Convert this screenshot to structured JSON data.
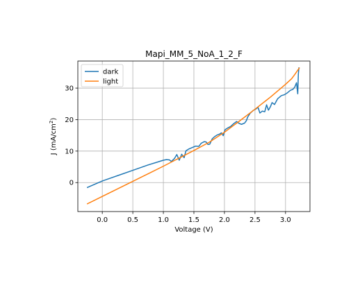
{
  "chart_data": {
    "type": "line",
    "title": "Mapi_MM_5_NoA_1_2_F",
    "xlabel": "Voltage (V)",
    "ylabel": "J (mA/cm²)",
    "ylabel_main": "J (mA/cm",
    "ylabel_sup": "2",
    "ylabel_end": ")",
    "xlim": [
      -0.4,
      3.4
    ],
    "ylim": [
      -9.2,
      38.6
    ],
    "xticks": [
      0.0,
      0.5,
      1.0,
      1.5,
      2.0,
      2.5,
      3.0
    ],
    "xtick_labels": [
      "0.0",
      "0.5",
      "1.0",
      "1.5",
      "2.0",
      "2.5",
      "3.0"
    ],
    "yticks": [
      0,
      10,
      20,
      30
    ],
    "ytick_labels": [
      "0",
      "10",
      "20",
      "30"
    ],
    "grid": true,
    "legend_position": "top-left",
    "series": [
      {
        "name": "dark",
        "color": "#1f77b4",
        "points": [
          [
            -0.25,
            -1.6
          ],
          [
            0.0,
            0.5
          ],
          [
            0.25,
            2.2
          ],
          [
            0.5,
            3.9
          ],
          [
            0.75,
            5.6
          ],
          [
            0.9,
            6.5
          ],
          [
            1.0,
            7.1
          ],
          [
            1.05,
            7.3
          ],
          [
            1.1,
            7.2
          ],
          [
            1.13,
            6.7
          ],
          [
            1.18,
            7.6
          ],
          [
            1.22,
            8.9
          ],
          [
            1.26,
            7.1
          ],
          [
            1.3,
            9.0
          ],
          [
            1.34,
            7.9
          ],
          [
            1.37,
            10.1
          ],
          [
            1.42,
            10.7
          ],
          [
            1.48,
            11.2
          ],
          [
            1.53,
            11.6
          ],
          [
            1.58,
            11.5
          ],
          [
            1.62,
            12.5
          ],
          [
            1.67,
            13.0
          ],
          [
            1.7,
            12.9
          ],
          [
            1.73,
            12.1
          ],
          [
            1.76,
            12.2
          ],
          [
            1.8,
            13.9
          ],
          [
            1.84,
            14.6
          ],
          [
            1.88,
            15.1
          ],
          [
            1.92,
            15.4
          ],
          [
            1.95,
            15.8
          ],
          [
            1.98,
            14.9
          ],
          [
            2.01,
            16.8
          ],
          [
            2.05,
            17.3
          ],
          [
            2.1,
            17.8
          ],
          [
            2.15,
            18.7
          ],
          [
            2.2,
            19.4
          ],
          [
            2.24,
            18.8
          ],
          [
            2.28,
            18.5
          ],
          [
            2.33,
            18.9
          ],
          [
            2.36,
            19.7
          ],
          [
            2.38,
            20.8
          ],
          [
            2.42,
            22.0
          ],
          [
            2.47,
            22.9
          ],
          [
            2.51,
            23.3
          ],
          [
            2.55,
            23.9
          ],
          [
            2.58,
            22.1
          ],
          [
            2.62,
            22.7
          ],
          [
            2.66,
            22.5
          ],
          [
            2.69,
            24.7
          ],
          [
            2.72,
            23.0
          ],
          [
            2.75,
            24.0
          ],
          [
            2.78,
            25.4
          ],
          [
            2.82,
            24.8
          ],
          [
            2.87,
            26.6
          ],
          [
            2.93,
            27.6
          ],
          [
            2.98,
            27.9
          ],
          [
            3.03,
            28.5
          ],
          [
            3.08,
            29.3
          ],
          [
            3.12,
            29.6
          ],
          [
            3.15,
            30.3
          ],
          [
            3.18,
            31.7
          ],
          [
            3.2,
            28.2
          ],
          [
            3.21,
            34.5
          ],
          [
            3.22,
            36.6
          ]
        ]
      },
      {
        "name": "light",
        "color": "#ff7f0e",
        "points": [
          [
            -0.25,
            -6.8
          ],
          [
            0.0,
            -4.4
          ],
          [
            0.25,
            -2.0
          ],
          [
            0.5,
            0.4
          ],
          [
            0.75,
            2.8
          ],
          [
            1.0,
            5.2
          ],
          [
            1.25,
            7.7
          ],
          [
            1.5,
            10.2
          ],
          [
            1.75,
            12.8
          ],
          [
            2.0,
            16.0
          ],
          [
            2.25,
            19.6
          ],
          [
            2.5,
            23.3
          ],
          [
            2.75,
            27.1
          ],
          [
            3.0,
            31.2
          ],
          [
            3.1,
            33.0
          ],
          [
            3.15,
            34.3
          ],
          [
            3.2,
            35.7
          ],
          [
            3.23,
            36.5
          ]
        ]
      }
    ]
  }
}
